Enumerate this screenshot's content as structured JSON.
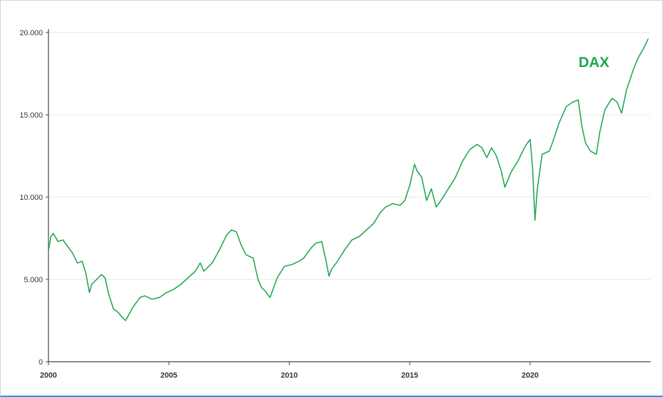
{
  "chart_data": {
    "type": "line",
    "title": "",
    "xlabel": "",
    "ylabel": "",
    "xlim": [
      2000,
      2025
    ],
    "ylim": [
      0,
      20000
    ],
    "grid": {
      "y": true,
      "x": false
    },
    "legend_placement": "top-right",
    "colors": {
      "line": "#1fa84f",
      "grid": "#e6e6e6",
      "axis": "#444444"
    },
    "y_ticks": [
      {
        "value": 0,
        "label": "0"
      },
      {
        "value": 5000,
        "label": "5.000"
      },
      {
        "value": 10000,
        "label": "10.000"
      },
      {
        "value": 15000,
        "label": "15.000"
      },
      {
        "value": 20000,
        "label": "20.000"
      }
    ],
    "x_ticks": [
      {
        "value": 2000,
        "label": "2000"
      },
      {
        "value": 2005,
        "label": "2005"
      },
      {
        "value": 2010,
        "label": "2010"
      },
      {
        "value": 2015,
        "label": "2015"
      },
      {
        "value": 2020,
        "label": "2020"
      }
    ],
    "series": [
      {
        "name": "DAX",
        "x": [
          2000.0,
          2000.1,
          2000.2,
          2000.4,
          2000.6,
          2000.8,
          2001.0,
          2001.2,
          2001.4,
          2001.55,
          2001.7,
          2001.8,
          2002.0,
          2002.2,
          2002.35,
          2002.5,
          2002.7,
          2002.9,
          2003.0,
          2003.2,
          2003.5,
          2003.8,
          2004.0,
          2004.3,
          2004.6,
          2004.9,
          2005.2,
          2005.5,
          2005.8,
          2006.1,
          2006.3,
          2006.45,
          2006.8,
          2007.1,
          2007.4,
          2007.6,
          2007.8,
          2008.0,
          2008.2,
          2008.5,
          2008.7,
          2008.85,
          2009.0,
          2009.2,
          2009.5,
          2009.8,
          2010.1,
          2010.4,
          2010.6,
          2010.9,
          2011.1,
          2011.35,
          2011.5,
          2011.65,
          2011.75,
          2012.0,
          2012.3,
          2012.6,
          2012.9,
          2013.2,
          2013.5,
          2013.8,
          2014.0,
          2014.3,
          2014.6,
          2014.8,
          2015.0,
          2015.2,
          2015.3,
          2015.5,
          2015.7,
          2015.9,
          2016.1,
          2016.3,
          2016.6,
          2016.9,
          2017.2,
          2017.5,
          2017.8,
          2018.0,
          2018.2,
          2018.4,
          2018.6,
          2018.8,
          2018.95,
          2019.2,
          2019.5,
          2019.8,
          2020.0,
          2020.1,
          2020.2,
          2020.3,
          2020.5,
          2020.8,
          2020.95,
          2021.2,
          2021.5,
          2021.8,
          2022.0,
          2022.15,
          2022.3,
          2022.5,
          2022.75,
          2022.9,
          2023.1,
          2023.4,
          2023.6,
          2023.8,
          2024.0,
          2024.3,
          2024.5,
          2024.7,
          2024.9
        ],
        "y": [
          6750,
          7600,
          7800,
          7300,
          7400,
          7000,
          6600,
          6000,
          6100,
          5400,
          4200,
          4700,
          5000,
          5300,
          5100,
          4100,
          3200,
          3000,
          2800,
          2500,
          3300,
          3900,
          4000,
          3800,
          3900,
          4200,
          4400,
          4700,
          5100,
          5500,
          6000,
          5500,
          6000,
          6800,
          7700,
          8000,
          7900,
          7100,
          6500,
          6300,
          5000,
          4500,
          4300,
          3900,
          5100,
          5800,
          5900,
          6100,
          6300,
          6900,
          7200,
          7300,
          6300,
          5200,
          5600,
          6100,
          6800,
          7400,
          7600,
          8000,
          8400,
          9100,
          9400,
          9600,
          9500,
          9800,
          10700,
          12000,
          11600,
          11200,
          9800,
          10500,
          9400,
          9800,
          10500,
          11200,
          12200,
          12900,
          13200,
          13000,
          12400,
          13000,
          12500,
          11600,
          10600,
          11500,
          12200,
          13100,
          13500,
          11800,
          8600,
          10500,
          12600,
          12800,
          13400,
          14500,
          15500,
          15800,
          15900,
          14300,
          13300,
          12800,
          12600,
          14000,
          15300,
          16000,
          15800,
          15100,
          16500,
          17800,
          18500,
          19000,
          19600
        ]
      }
    ]
  }
}
